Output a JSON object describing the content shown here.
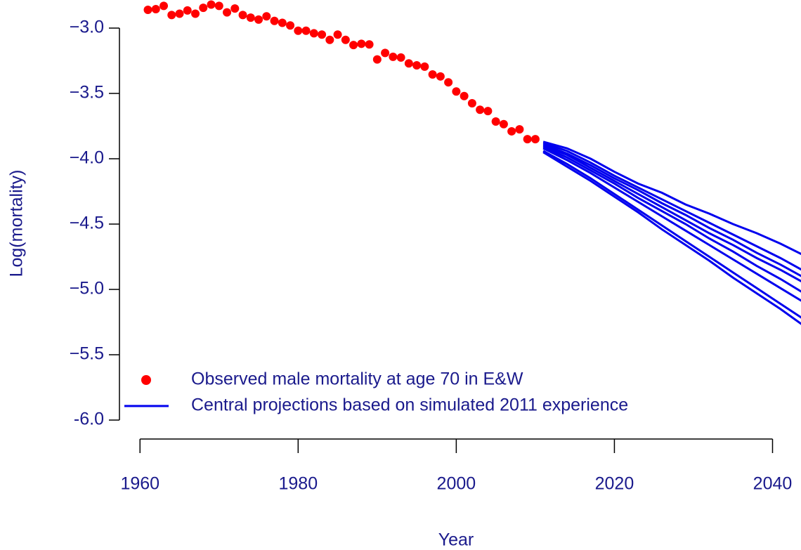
{
  "chart_data": {
    "type": "scatter-line",
    "xlabel": "Year",
    "ylabel": "Log(mortality)",
    "xlim": [
      1957.4,
      2043.6
    ],
    "ylim": [
      -6.145,
      -2.785
    ],
    "xticks": [
      1960,
      1980,
      2000,
      2020,
      2040
    ],
    "yticks": [
      {
        "value": -3,
        "label": "−3.0"
      },
      {
        "value": -3.5,
        "label": "−3.5"
      },
      {
        "value": -4,
        "label": "−4.0"
      },
      {
        "value": -4.5,
        "label": "−4.5"
      },
      {
        "value": -5,
        "label": "−5.0"
      },
      {
        "value": -5.5,
        "label": "−5.5"
      },
      {
        "value": -6,
        "label": "-6.0"
      }
    ],
    "legend": "bottom-left",
    "series": [
      {
        "name": "Observed male mortality at age 70 in E&W",
        "kind": "points",
        "color": "#ff0000",
        "x": [
          1961,
          1962,
          1963,
          1964,
          1965,
          1966,
          1967,
          1968,
          1969,
          1970,
          1971,
          1972,
          1973,
          1974,
          1975,
          1976,
          1977,
          1978,
          1979,
          1980,
          1981,
          1982,
          1983,
          1984,
          1985,
          1986,
          1987,
          1988,
          1989,
          1990,
          1991,
          1992,
          1993,
          1994,
          1995,
          1996,
          1997,
          1998,
          1999,
          2000,
          2001,
          2002,
          2003,
          2004,
          2005,
          2006,
          2007,
          2008,
          2009,
          2010
        ],
        "values": [
          -2.86,
          -2.855,
          -2.83,
          -2.9,
          -2.89,
          -2.865,
          -2.89,
          -2.845,
          -2.82,
          -2.83,
          -2.88,
          -2.85,
          -2.9,
          -2.92,
          -2.935,
          -2.91,
          -2.945,
          -2.96,
          -2.98,
          -3.02,
          -3.02,
          -3.04,
          -3.05,
          -3.09,
          -3.05,
          -3.09,
          -3.13,
          -3.12,
          -3.125,
          -3.24,
          -3.19,
          -3.22,
          -3.225,
          -3.27,
          -3.285,
          -3.295,
          -3.355,
          -3.37,
          -3.415,
          -3.485,
          -3.52,
          -3.575,
          -3.625,
          -3.635,
          -3.715,
          -3.735,
          -3.79,
          -3.775,
          -3.85,
          -3.85
        ]
      },
      {
        "name": "Central projections based on simulated 2011 experience",
        "kind": "line",
        "color": "#0000ee",
        "x": [
          2011,
          2014,
          2017,
          2020,
          2023,
          2026,
          2029,
          2032,
          2035,
          2038,
          2041,
          2044
        ],
        "values": [
          -3.87,
          -3.92,
          -4.0,
          -4.1,
          -4.19,
          -4.26,
          -4.35,
          -4.42,
          -4.5,
          -4.57,
          -4.65,
          -4.74
        ]
      },
      {
        "kind": "line",
        "color": "#0000ee",
        "x": [
          2011,
          2014,
          2017,
          2020,
          2023,
          2026,
          2029,
          2032,
          2035,
          2038,
          2041,
          2044
        ],
        "values": [
          -3.88,
          -3.94,
          -4.03,
          -4.13,
          -4.22,
          -4.31,
          -4.4,
          -4.49,
          -4.58,
          -4.67,
          -4.76,
          -4.86
        ]
      },
      {
        "kind": "line",
        "color": "#0000ee",
        "x": [
          2011,
          2014,
          2017,
          2020,
          2023,
          2026,
          2029,
          2032,
          2035,
          2038,
          2041,
          2044
        ],
        "values": [
          -3.89,
          -3.96,
          -4.05,
          -4.15,
          -4.24,
          -4.34,
          -4.43,
          -4.53,
          -4.62,
          -4.72,
          -4.81,
          -4.91
        ]
      },
      {
        "kind": "line",
        "color": "#0000ee",
        "x": [
          2011,
          2014,
          2017,
          2020,
          2023,
          2026,
          2029,
          2032,
          2035,
          2038,
          2041,
          2044
        ],
        "values": [
          -3.9,
          -3.97,
          -4.07,
          -4.17,
          -4.27,
          -4.37,
          -4.47,
          -4.57,
          -4.66,
          -4.76,
          -4.85,
          -4.95
        ]
      },
      {
        "kind": "line",
        "color": "#0000ee",
        "x": [
          2011,
          2014,
          2017,
          2020,
          2023,
          2026,
          2029,
          2032,
          2035,
          2038,
          2041,
          2044
        ],
        "values": [
          -3.91,
          -3.99,
          -4.09,
          -4.19,
          -4.3,
          -4.4,
          -4.5,
          -4.61,
          -4.71,
          -4.82,
          -4.92,
          -5.03
        ]
      },
      {
        "kind": "line",
        "color": "#0000ee",
        "x": [
          2011,
          2014,
          2017,
          2020,
          2023,
          2026,
          2029,
          2032,
          2035,
          2038,
          2041,
          2044
        ],
        "values": [
          -3.92,
          -4.01,
          -4.11,
          -4.22,
          -4.33,
          -4.44,
          -4.55,
          -4.66,
          -4.77,
          -4.88,
          -4.99,
          -5.1
        ]
      },
      {
        "kind": "line",
        "color": "#0000ee",
        "x": [
          2011,
          2014,
          2017,
          2020,
          2023,
          2026,
          2029,
          2032,
          2035,
          2038,
          2041,
          2044
        ],
        "values": [
          -3.94,
          -4.04,
          -4.15,
          -4.27,
          -4.39,
          -4.51,
          -4.63,
          -4.75,
          -4.87,
          -4.99,
          -5.11,
          -5.23
        ]
      },
      {
        "kind": "line",
        "color": "#0000ee",
        "x": [
          2011,
          2014,
          2017,
          2020,
          2023,
          2026,
          2029,
          2032,
          2035,
          2038,
          2041,
          2044
        ],
        "values": [
          -3.95,
          -4.06,
          -4.17,
          -4.29,
          -4.41,
          -4.54,
          -4.66,
          -4.78,
          -4.91,
          -5.03,
          -5.15,
          -5.28
        ]
      }
    ]
  }
}
